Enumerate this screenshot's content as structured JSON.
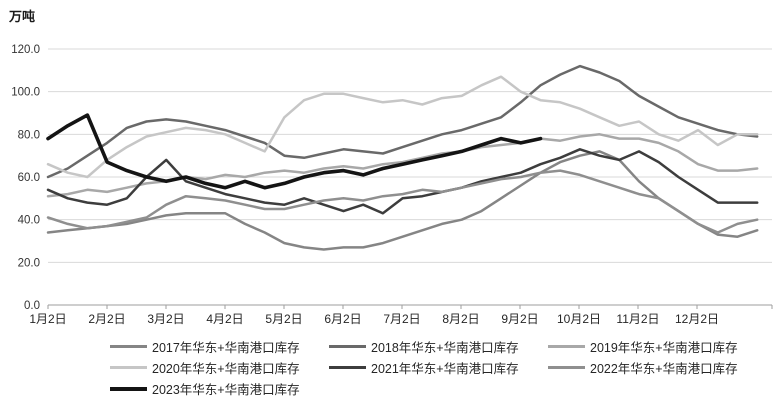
{
  "chart": {
    "unit": "万吨"
  },
  "chart_data": {
    "type": "line",
    "title": "",
    "unit_label": "万吨",
    "xlabel": "",
    "ylabel": "万吨",
    "ylim": [
      0,
      120
    ],
    "y_tick_step": 20,
    "y_tick_labels": [
      "0.0",
      "20.0",
      "40.0",
      "60.0",
      "80.0",
      "100.0",
      "120.0"
    ],
    "x_tick_labels": [
      "1月2日",
      "2月2日",
      "3月2日",
      "4月2日",
      "5月2日",
      "6月2日",
      "7月2日",
      "8月2日",
      "9月2日",
      "10月2日",
      "11月2日",
      "12月2日"
    ],
    "points_per_month": 3,
    "grid": true,
    "legend_position": "bottom",
    "series": [
      {
        "name": "2017年华东+华南港口库存",
        "color": "#858585",
        "width": 2.5,
        "values": [
          34,
          35,
          36,
          37,
          38,
          40,
          42,
          43,
          43,
          43,
          38,
          34,
          29,
          27,
          26,
          27,
          27,
          29,
          32,
          35,
          38,
          40,
          44,
          50,
          56,
          62,
          67,
          70,
          72,
          68,
          58,
          50,
          44,
          38,
          33,
          32,
          35
        ]
      },
      {
        "name": "2018年华东+华南港口库存",
        "color": "#696969",
        "width": 2.5,
        "values": [
          60,
          64,
          70,
          76,
          83,
          86,
          87,
          86,
          84,
          82,
          79,
          76,
          70,
          69,
          71,
          73,
          72,
          71,
          74,
          77,
          80,
          82,
          85,
          88,
          95,
          103,
          108,
          112,
          109,
          105,
          98,
          93,
          88,
          85,
          82,
          80,
          79
        ]
      },
      {
        "name": "2019年华东+华南港口库存",
        "color": "#a8a8a8",
        "width": 2.5,
        "values": [
          51,
          52,
          54,
          53,
          55,
          57,
          58,
          60,
          59,
          61,
          60,
          62,
          63,
          62,
          64,
          65,
          64,
          66,
          67,
          69,
          71,
          72,
          74,
          75,
          76,
          78,
          77,
          79,
          80,
          78,
          78,
          76,
          72,
          66,
          63,
          63,
          64
        ]
      },
      {
        "name": "2020年华东+华南港口库存",
        "color": "#c6c6c6",
        "width": 2.5,
        "values": [
          66,
          62,
          60,
          68,
          74,
          79,
          81,
          83,
          82,
          80,
          76,
          72,
          88,
          96,
          99,
          99,
          97,
          95,
          96,
          94,
          97,
          98,
          103,
          107,
          100,
          96,
          95,
          92,
          88,
          84,
          86,
          80,
          77,
          82,
          75,
          80,
          80
        ]
      },
      {
        "name": "2021年华东+华南港口库存",
        "color": "#3d3d3d",
        "width": 2.5,
        "values": [
          54,
          50,
          48,
          47,
          50,
          60,
          68,
          58,
          55,
          52,
          50,
          48,
          47,
          50,
          47,
          44,
          47,
          43,
          50,
          51,
          53,
          55,
          58,
          60,
          62,
          66,
          69,
          73,
          70,
          68,
          72,
          67,
          60,
          54,
          48,
          48,
          48
        ]
      },
      {
        "name": "2022年华东+华南港口库存",
        "color": "#8f8f8f",
        "width": 2.5,
        "values": [
          41,
          38,
          36,
          37,
          39,
          41,
          47,
          51,
          50,
          49,
          47,
          45,
          45,
          47,
          49,
          50,
          49,
          51,
          52,
          54,
          53,
          55,
          57,
          59,
          60,
          62,
          63,
          61,
          58,
          55,
          52,
          50,
          44,
          38,
          34,
          38,
          40
        ]
      },
      {
        "name": "2023年华东+华南港口库存",
        "color": "#141414",
        "width": 3.6,
        "values": [
          78,
          84,
          89,
          67,
          63,
          60,
          58,
          60,
          57,
          55,
          58,
          55,
          57,
          60,
          62,
          63,
          61,
          64,
          66,
          68,
          70,
          72,
          75,
          78,
          76,
          78
        ]
      }
    ],
    "colors": {
      "grid": "#d9d9d9",
      "axis": "#9e9e9e",
      "text": "#262626"
    }
  }
}
